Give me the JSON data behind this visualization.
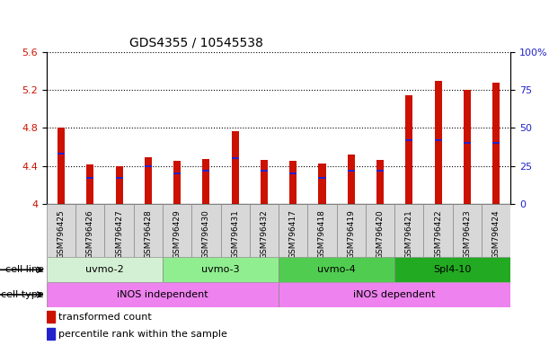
{
  "title": "GDS4355 / 10545538",
  "samples": [
    "GSM796425",
    "GSM796426",
    "GSM796427",
    "GSM796428",
    "GSM796429",
    "GSM796430",
    "GSM796431",
    "GSM796432",
    "GSM796417",
    "GSM796418",
    "GSM796419",
    "GSM796420",
    "GSM796421",
    "GSM796422",
    "GSM796423",
    "GSM796424"
  ],
  "bar_base": 4.0,
  "transformed_count": [
    4.8,
    4.42,
    4.4,
    4.49,
    4.45,
    4.47,
    4.77,
    4.46,
    4.45,
    4.43,
    4.52,
    4.46,
    5.15,
    5.3,
    5.2,
    5.28
  ],
  "percentile_rank_pct": [
    33,
    17,
    17,
    25,
    20,
    22,
    30,
    22,
    20,
    17,
    22,
    22,
    42,
    42,
    40,
    40
  ],
  "ylim_left": [
    4.0,
    5.6
  ],
  "ylim_right": [
    0,
    100
  ],
  "yticks_left": [
    4.0,
    4.4,
    4.8,
    5.2,
    5.6
  ],
  "yticks_right": [
    0,
    25,
    50,
    75,
    100
  ],
  "ytick_labels_left": [
    "4",
    "4.4",
    "4.8",
    "5.2",
    "5.6"
  ],
  "ytick_labels_right": [
    "0",
    "25",
    "50",
    "75",
    "100%"
  ],
  "cell_line_groups": [
    {
      "label": "uvmo-2",
      "start": 0,
      "end": 3,
      "color": "#d4f0d4"
    },
    {
      "label": "uvmo-3",
      "start": 4,
      "end": 7,
      "color": "#90ee90"
    },
    {
      "label": "uvmo-4",
      "start": 8,
      "end": 11,
      "color": "#50cc50"
    },
    {
      "label": "Spl4-10",
      "start": 12,
      "end": 15,
      "color": "#22aa22"
    }
  ],
  "cell_type_groups": [
    {
      "label": "iNOS independent",
      "start": 0,
      "end": 7,
      "color": "#ee82ee"
    },
    {
      "label": "iNOS dependent",
      "start": 8,
      "end": 15,
      "color": "#ee82ee"
    }
  ],
  "bar_color_red": "#cc1100",
  "bar_color_blue": "#2222cc",
  "bar_width": 0.25,
  "grid_color": "black",
  "background_plot": "white",
  "background_fig": "white",
  "tick_label_color_left": "#cc1100",
  "tick_label_color_right": "#2222cc",
  "legend_items": [
    {
      "label": "transformed count",
      "color": "#cc1100"
    },
    {
      "label": "percentile rank within the sample",
      "color": "#2222cc"
    }
  ],
  "xlabel_row1": "cell line",
  "xlabel_row2": "cell type",
  "xticklabel_fontsize": 6.5,
  "title_fontsize": 10
}
